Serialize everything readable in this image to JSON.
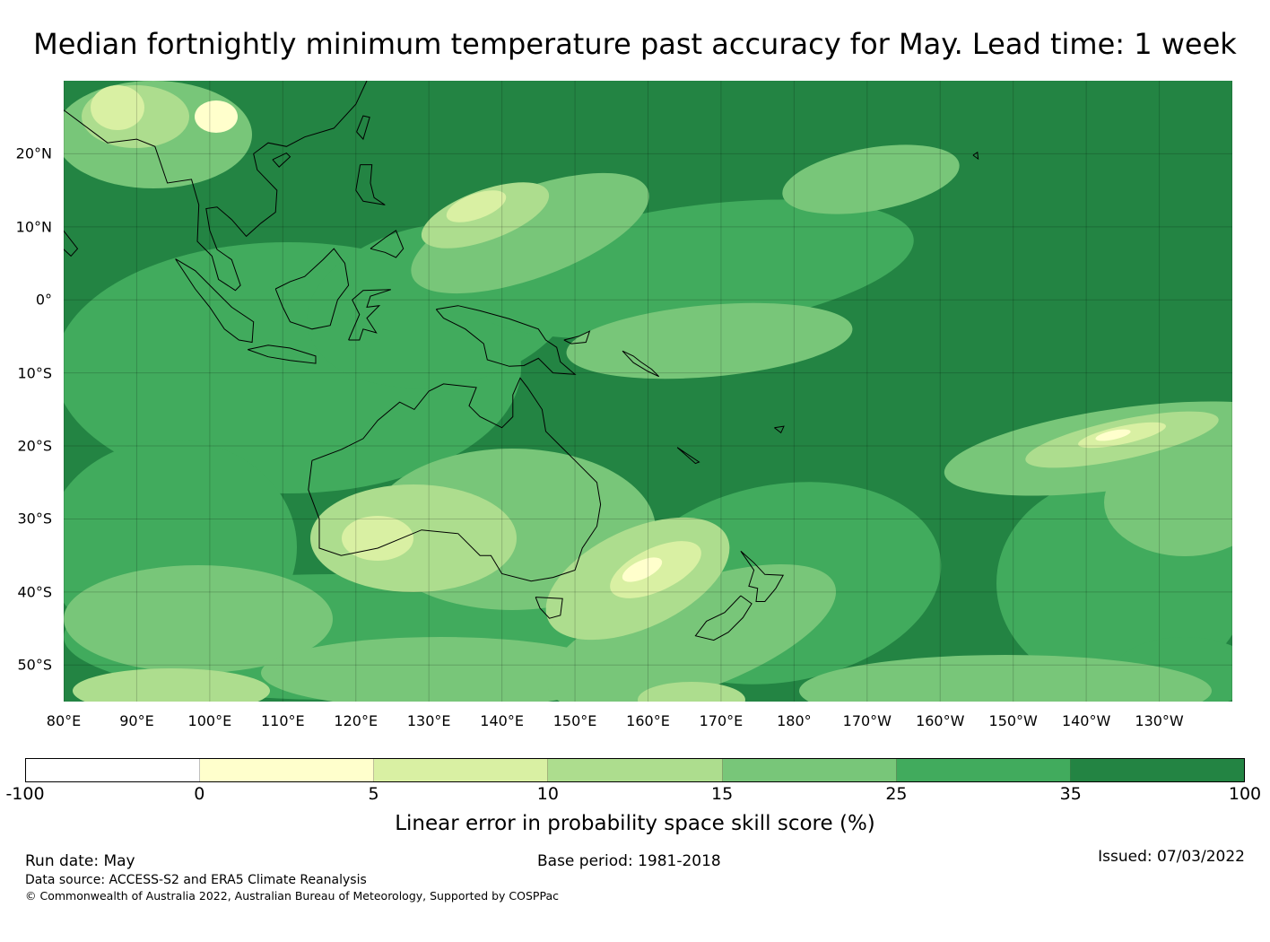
{
  "title": "Median fortnightly minimum temperature past accuracy for May. Lead time: 1 week",
  "map": {
    "lat_labels": [
      "20°N",
      "10°N",
      "0°",
      "10°S",
      "20°S",
      "30°S",
      "40°S",
      "50°S"
    ],
    "lon_labels": [
      "80°E",
      "90°E",
      "100°E",
      "110°E",
      "120°E",
      "130°E",
      "140°E",
      "150°E",
      "160°E",
      "170°E",
      "180°",
      "170°W",
      "160°W",
      "150°W",
      "140°W",
      "130°W"
    ],
    "extent": {
      "lon_min": 80,
      "lon_max": 240,
      "lat_min": -55,
      "lat_max": 30
    }
  },
  "colorbar": {
    "ticks": [
      "-100",
      "0",
      "5",
      "10",
      "15",
      "25",
      "35",
      "100"
    ],
    "colors": [
      "#ffffff",
      "#ffffcc",
      "#d9f0a3",
      "#addd8e",
      "#78c679",
      "#41ab5d",
      "#238443"
    ],
    "label": "Linear error in probability space skill score (%)"
  },
  "footer": {
    "run_date": "Run date: May",
    "base_period": "Base period: 1981-2018",
    "issued": "Issued: 07/03/2022",
    "data_source": "Data source: ACCESS-S2 and ERA5 Climate Reanalysis",
    "copyright": "© Commonwealth of Australia 2022, Australian Bureau of Meteorology, Supported by COSPPac"
  }
}
